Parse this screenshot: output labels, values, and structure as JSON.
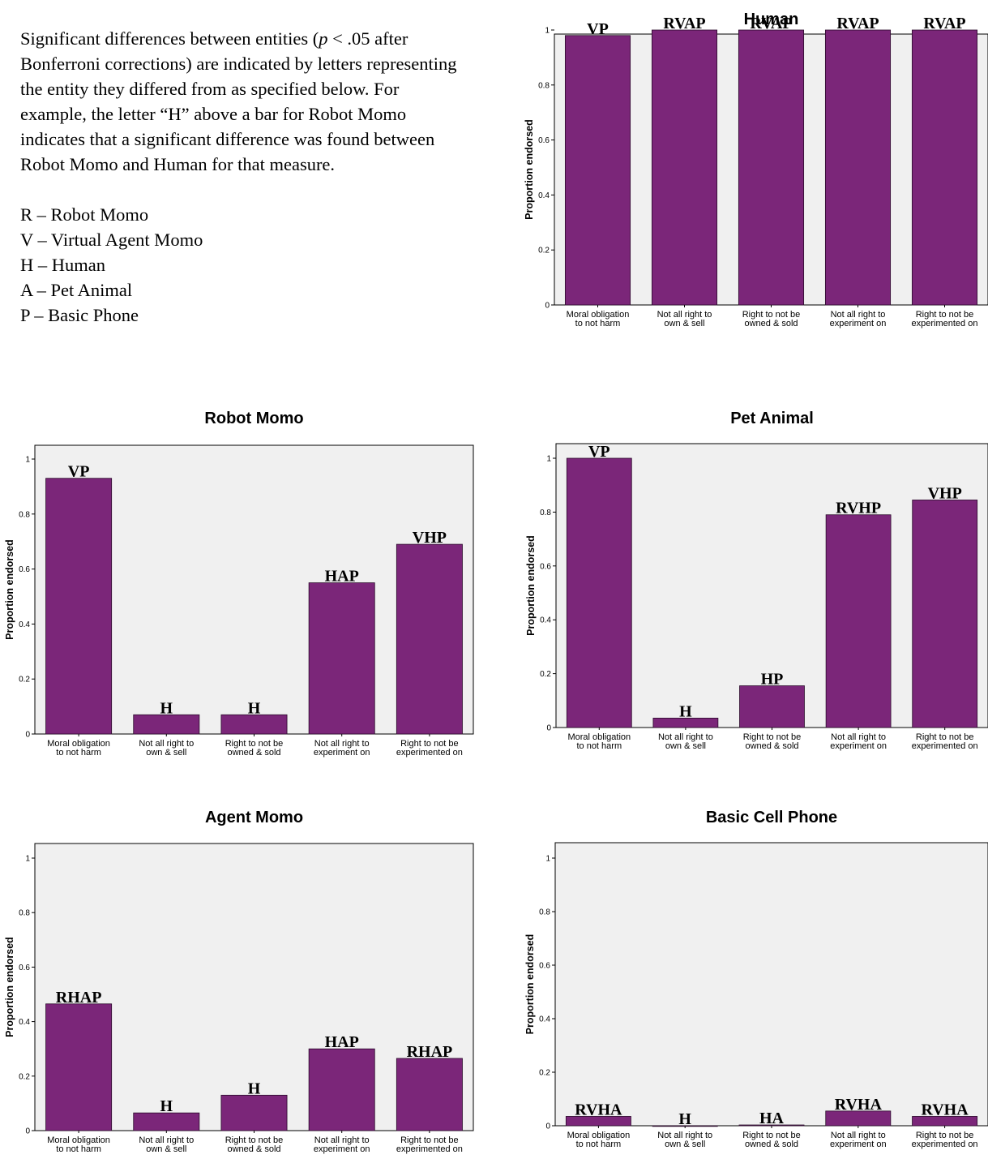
{
  "intro": {
    "paragraph_before": "Significant differences between entities (",
    "p_symbol": "p",
    "paragraph_after": " < .05 after Bonferroni corrections) are indicated by letters representing the entity they differed from as specified below.  For example, the letter “H” above a bar for Robot Momo indicates that a significant difference was found between Robot Momo and Human for that measure.",
    "legend": [
      "R – Robot Momo",
      "V – Virtual Agent Momo",
      "H – Human",
      "A – Pet Animal",
      "P – Basic Phone"
    ]
  },
  "colors": {
    "bar": "#7b2679",
    "plot_bg": "#f0f0f0"
  },
  "chart_data": [
    {
      "type": "bar",
      "title": "Human",
      "ylabel": "Proportion endorsed",
      "ylim": [
        0,
        1
      ],
      "yticks": [
        "0",
        "0.2",
        "0.4",
        "0.6",
        "0.8",
        "1"
      ],
      "categories": [
        [
          "Moral obligation",
          "to not harm"
        ],
        [
          "Not all right to",
          "own & sell"
        ],
        [
          "Right to not be",
          "owned & sold"
        ],
        [
          "Not all right to",
          "experiment on"
        ],
        [
          "Right to not be",
          "experimented on"
        ]
      ],
      "values": [
        0.98,
        1.0,
        1.0,
        1.0,
        1.0
      ],
      "labels": [
        "VP",
        "RVAP",
        "RVAP",
        "RVAP",
        "RVAP"
      ]
    },
    {
      "type": "bar",
      "title": "Robot Momo",
      "ylabel": "Proportion endorsed",
      "ylim": [
        0,
        1
      ],
      "yticks": [
        "0",
        "0.2",
        "0.4",
        "0.6",
        "0.8",
        "1"
      ],
      "categories": [
        [
          "Moral obligation",
          "to not harm"
        ],
        [
          "Not all right to",
          "own & sell"
        ],
        [
          "Right to not be",
          "owned & sold"
        ],
        [
          "Not all right to",
          "experiment on"
        ],
        [
          "Right to not be",
          "experimented on"
        ]
      ],
      "values": [
        0.93,
        0.07,
        0.07,
        0.55,
        0.69
      ],
      "labels": [
        "VP",
        "H",
        "H",
        "HAP",
        "VHP"
      ]
    },
    {
      "type": "bar",
      "title": "Pet Animal",
      "ylabel": "Proportion endorsed",
      "ylim": [
        0,
        1
      ],
      "yticks": [
        "0",
        "0.2",
        "0.4",
        "0.6",
        "0.8",
        "1"
      ],
      "categories": [
        [
          "Moral obligation",
          "to not harm"
        ],
        [
          "Not all right to",
          "own & sell"
        ],
        [
          "Right to not be",
          "owned & sold"
        ],
        [
          "Not all right to",
          "experiment on"
        ],
        [
          "Right to not be",
          "experimented on"
        ]
      ],
      "values": [
        1.0,
        0.035,
        0.155,
        0.79,
        0.845
      ],
      "labels": [
        "VP",
        "H",
        "HP",
        "RVHP",
        "VHP"
      ]
    },
    {
      "type": "bar",
      "title": "Agent Momo",
      "ylabel": "Proportion endorsed",
      "ylim": [
        0,
        1
      ],
      "yticks": [
        "0",
        "0.2",
        "0.4",
        "0.6",
        "0.8",
        "1"
      ],
      "categories": [
        [
          "Moral obligation",
          "to not harm"
        ],
        [
          "Not all right to",
          "own & sell"
        ],
        [
          "Right to not be",
          "owned & sold"
        ],
        [
          "Not all right to",
          "experiment on"
        ],
        [
          "Right to not be",
          "experimented on"
        ]
      ],
      "values": [
        0.465,
        0.065,
        0.13,
        0.3,
        0.265
      ],
      "labels": [
        "RHAP",
        "H",
        "H",
        "HAP",
        "RHAP"
      ]
    },
    {
      "type": "bar",
      "title": "Basic Cell Phone",
      "ylabel": "Proportion endorsed",
      "ylim": [
        0,
        1
      ],
      "yticks": [
        "0",
        "0.2",
        "0.4",
        "0.6",
        "0.8",
        "1"
      ],
      "categories": [
        [
          "Moral obligation",
          "to not harm"
        ],
        [
          "Not all right to",
          "own & sell"
        ],
        [
          "Right to not be",
          "owned & sold"
        ],
        [
          "Not all right to",
          "experiment on"
        ],
        [
          "Right to not be",
          "experimented on"
        ]
      ],
      "values": [
        0.035,
        0.0,
        0.003,
        0.055,
        0.035
      ],
      "labels": [
        "RVHA",
        "H",
        "HA",
        "RVHA",
        "RVHA"
      ]
    }
  ]
}
